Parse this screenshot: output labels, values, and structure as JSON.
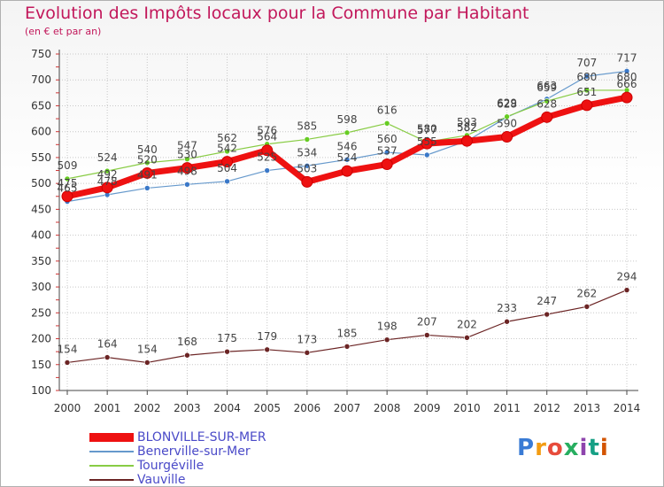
{
  "title": "Evolution des Impôts locaux pour la Commune par Habitant",
  "subtitle": "(en € et par an)",
  "brand": "Proxiti",
  "chart_data": {
    "type": "line",
    "title": "Evolution des Impôts locaux pour la Commune par Habitant",
    "subtitle": "(en € et par an)",
    "x": [
      "2000",
      "2001",
      "2002",
      "2003",
      "2004",
      "2005",
      "2006",
      "2007",
      "2008",
      "2009",
      "2010",
      "2011",
      "2012",
      "2013",
      "2014"
    ],
    "y_ticks": [
      100,
      150,
      200,
      250,
      300,
      350,
      400,
      450,
      500,
      550,
      600,
      650,
      700,
      750
    ],
    "ylim": [
      100,
      750
    ],
    "grid": true,
    "legend_position": "bottom-left",
    "series": [
      {
        "name": "BLONVILLE-SUR-MER",
        "color": "#ee1111",
        "values": [
          475,
          492,
          520,
          530,
          542,
          564,
          503,
          524,
          537,
          577,
          582,
          590,
          628,
          651,
          666
        ]
      },
      {
        "name": "Benerville-sur-Mer",
        "color": "#6699cc",
        "values": [
          465,
          478,
          491,
          498,
          504,
          525,
          534,
          546,
          560,
          555,
          582,
          628,
          663,
          707,
          717
        ]
      },
      {
        "name": "Tourgéville",
        "color": "#88cc44",
        "values": [
          509,
          524,
          540,
          547,
          562,
          576,
          585,
          598,
          616,
          580,
          593,
          629,
          659,
          680,
          680
        ]
      },
      {
        "name": "Vauville",
        "color": "#6b2424",
        "values": [
          154,
          164,
          154,
          168,
          175,
          179,
          173,
          185,
          198,
          207,
          202,
          233,
          247,
          262,
          294
        ]
      }
    ]
  }
}
